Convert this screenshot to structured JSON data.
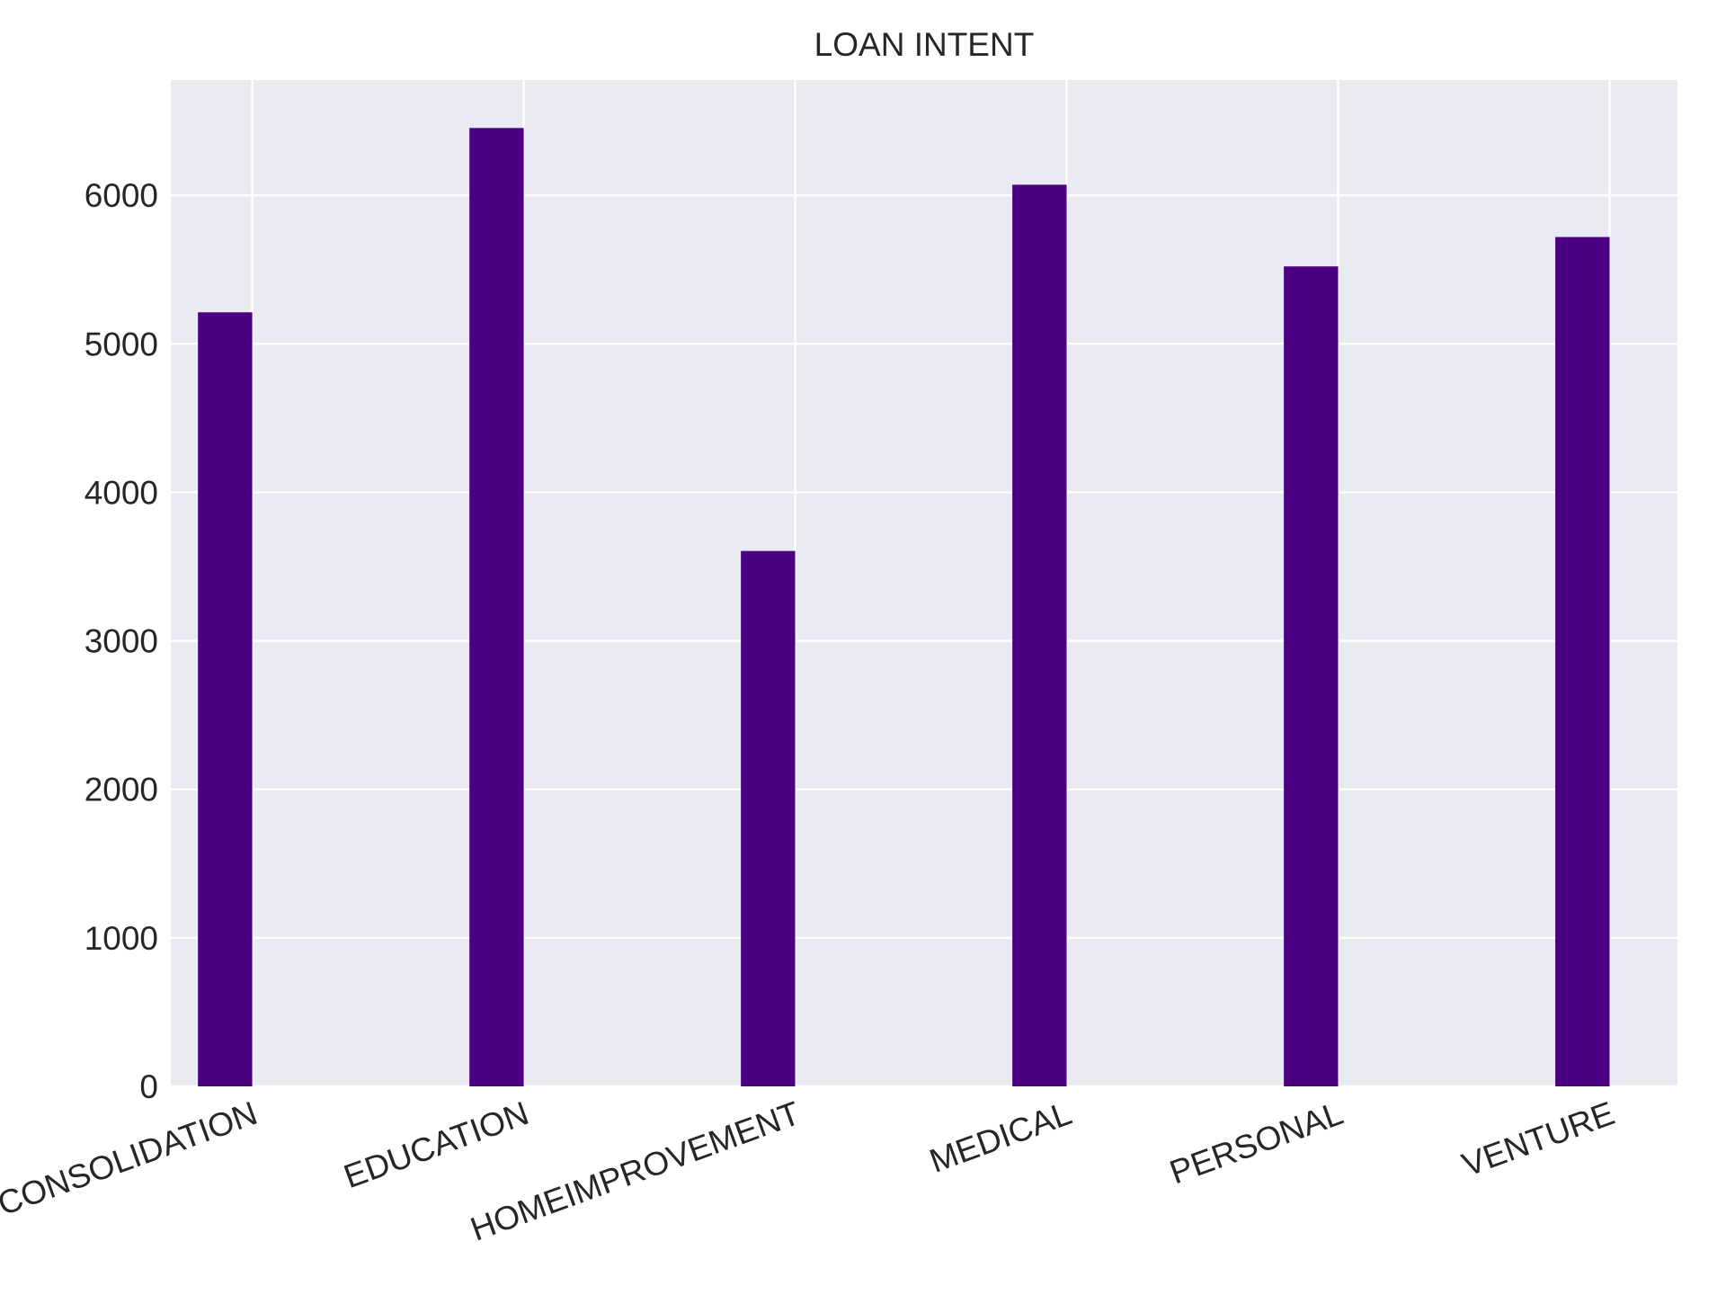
{
  "chart_data": {
    "type": "bar",
    "title": "LOAN INTENT",
    "xlabel": "",
    "ylabel": "",
    "categories": [
      "DEBTCONSOLIDATION",
      "EDUCATION",
      "HOMEIMPROVEMENT",
      "MEDICAL",
      "PERSONAL",
      "VENTURE"
    ],
    "values": [
      5212,
      6453,
      3605,
      6071,
      5521,
      5719
    ],
    "ylim": [
      0,
      6776
    ],
    "yticks": [
      "0",
      "1000",
      "2000",
      "3000",
      "4000",
      "5000",
      "6000"
    ],
    "grid": true,
    "legend": "none",
    "colors": {
      "bar": "#4b0082",
      "plot_background": "#eaeaf2",
      "grid": "#ffffff",
      "text": "#262626"
    }
  }
}
